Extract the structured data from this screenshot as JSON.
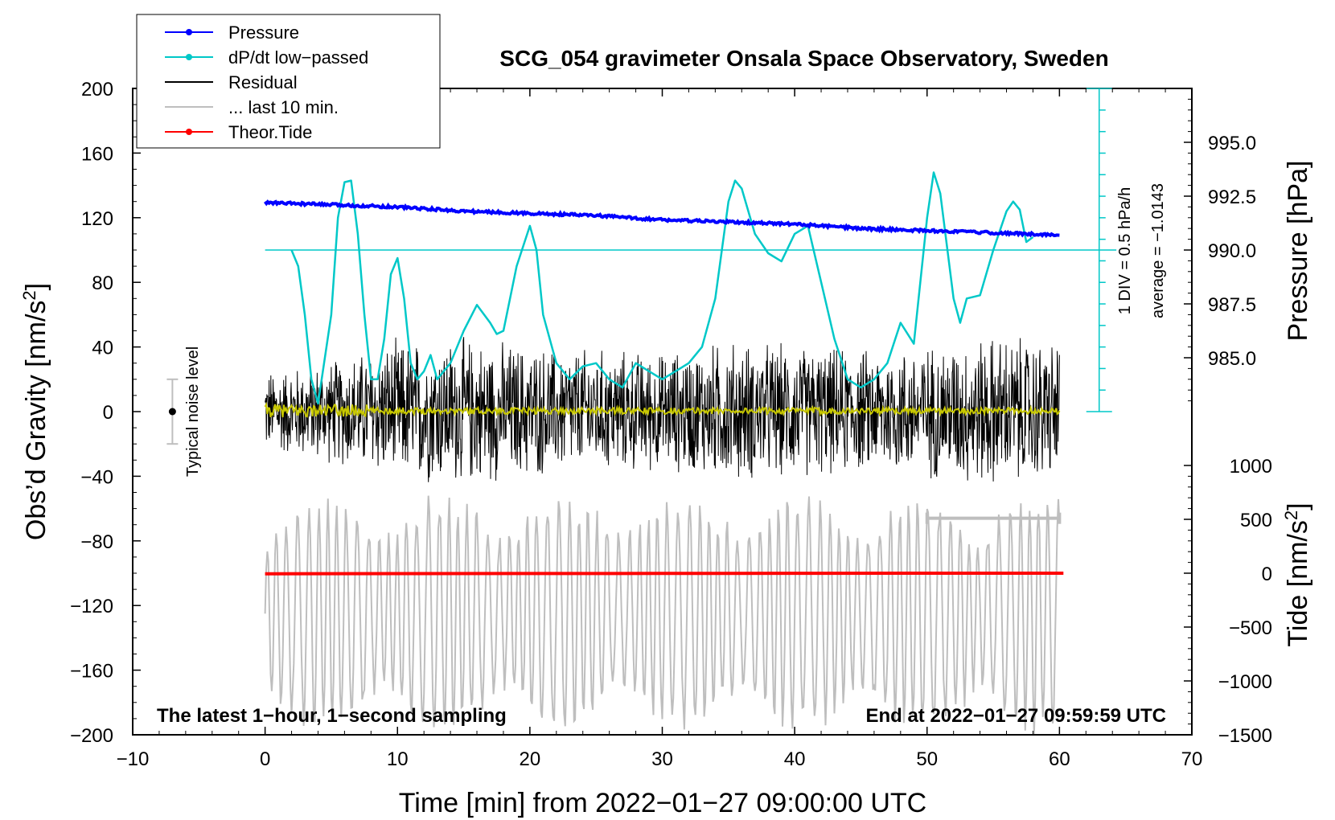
{
  "chart_data": {
    "type": "line",
    "title": "SCG_054 gravimeter Onsala Space Observatory, Sweden",
    "xlabel": "Time [min] from 2022−01−27 09:00:00 UTC",
    "ylabel_left_main": "Obs’d Gravity [nm/s",
    "ylabel_left_sup": "2",
    "ylabel_left_end": "]",
    "ylabel_right_top": "Pressure [hPa]",
    "ylabel_right_bottom_main": "Tide [nm/s",
    "ylabel_right_bottom_sup": "2",
    "ylabel_right_bottom_end": "]",
    "xlim": [
      -10,
      70
    ],
    "ylim": [
      -200,
      200
    ],
    "pressure_lim": [
      982.5,
      997.5
    ],
    "tide_lim": [
      -1500,
      1500
    ],
    "x_ticks": [
      -10,
      0,
      10,
      20,
      30,
      40,
      50,
      60,
      70
    ],
    "x_tick_labels": [
      "−10",
      "0",
      "10",
      "20",
      "30",
      "40",
      "50",
      "60",
      "70"
    ],
    "y_ticks": [
      200,
      160,
      120,
      80,
      40,
      0,
      -40,
      -80,
      -120,
      -160,
      -200
    ],
    "y_tick_labels": [
      "200",
      "160",
      "120",
      "80",
      "40",
      "0",
      "−40",
      "−80",
      "−120",
      "−160",
      "−200"
    ],
    "pressure_ticks": [
      995.0,
      992.5,
      990.0,
      987.5,
      985.0
    ],
    "pressure_tick_labels": [
      "995.0",
      "992.5",
      "990.0",
      "987.5",
      "985.0"
    ],
    "tide_ticks": [
      1000,
      500,
      0,
      -500,
      -1000,
      -1500
    ],
    "tide_tick_labels": [
      "1000",
      "500",
      "0",
      "−500",
      "−1000",
      "−1500"
    ],
    "legend": [
      {
        "label": "Pressure",
        "color": "#0000ff",
        "marker": true
      },
      {
        "label": "dP/dt low−passed",
        "color": "#00c8c8",
        "marker": true
      },
      {
        "label": "Residual",
        "color": "#000000",
        "marker": false
      },
      {
        "label": "... last 10 min.",
        "color": "#bebebe",
        "marker": false
      },
      {
        "label": "Theor.Tide",
        "color": "#ff0000",
        "marker": true
      }
    ],
    "annotations": {
      "bottom_left": "The latest 1−hour, 1−second sampling",
      "bottom_right": "End at 2022−01−27 09:59:59 UTC",
      "noise": "Typical noise level",
      "div_label": "1 DIV = 0.5 hPa/h",
      "average_label": "average = −1.0143"
    },
    "noise_level": {
      "x": -7,
      "center": 0,
      "half_range": 20
    },
    "scale_bar_x": [
      50,
      60
    ],
    "scale_bar_y": -66,
    "dpdt_scale": {
      "x": 63,
      "y_bottom": 0,
      "y_top": 200,
      "tick_step": 13.33
    },
    "dpdt_baseline_y": 100,
    "series": [
      {
        "name": "Pressure",
        "axis": "pressure",
        "color": "#0000ff",
        "x": [
          0,
          5,
          10,
          15,
          20,
          25,
          30,
          35,
          40,
          45,
          50,
          55,
          60
        ],
        "values": [
          992.2,
          992.1,
          992.0,
          991.8,
          991.7,
          991.6,
          991.4,
          991.3,
          991.2,
          991.0,
          990.9,
          990.8,
          990.7
        ]
      },
      {
        "name": "dP/dt low-passed",
        "axis": "gravity",
        "color": "#00c8c8",
        "x": [
          2.0,
          2.5,
          3.0,
          3.5,
          4.0,
          5.0,
          5.5,
          6.0,
          6.5,
          7.0,
          7.5,
          8.0,
          8.5,
          9.0,
          9.5,
          10.0,
          10.5,
          11.0,
          11.5,
          12.0,
          12.5,
          13.0,
          14.0,
          15.0,
          16.0,
          17.0,
          17.5,
          18.0,
          19.0,
          20.0,
          20.5,
          21.0,
          22.0,
          23.0,
          24.0,
          25.0,
          26.0,
          27.0,
          28.0,
          29.0,
          30.0,
          31.0,
          32.0,
          33.0,
          34.0,
          35.0,
          35.5,
          36.0,
          37.0,
          38.0,
          39.0,
          40.0,
          41.0,
          42.0,
          43.0,
          44.0,
          45.0,
          46.0,
          47.0,
          48.0,
          49.0,
          50.0,
          50.5,
          51.0,
          52.0,
          52.5,
          53.0,
          54.0,
          55.0,
          56.0,
          56.5,
          57.0,
          57.5,
          58.0
        ],
        "values": [
          100,
          90,
          60,
          20,
          5,
          60,
          120,
          142,
          143,
          110,
          60,
          20,
          20,
          45,
          85,
          95,
          70,
          30,
          20,
          25,
          35,
          20,
          30,
          50,
          66,
          55,
          48,
          50,
          90,
          115,
          100,
          60,
          30,
          20,
          28,
          30,
          20,
          15,
          30,
          25,
          20,
          25,
          30,
          40,
          70,
          130,
          143,
          138,
          110,
          98,
          93,
          110,
          115,
          80,
          45,
          20,
          15,
          20,
          30,
          55,
          42,
          120,
          148,
          135,
          70,
          55,
          70,
          72,
          100,
          124,
          130,
          125,
          105,
          108
        ]
      },
      {
        "name": "Theor.Tide",
        "axis": "tide",
        "color": "#ff0000",
        "x": [
          0,
          10,
          20,
          30,
          40,
          50,
          60.3
        ],
        "values": [
          -5,
          -4,
          -3,
          -2,
          -1,
          0,
          0
        ]
      }
    ],
    "residual_envelope": {
      "x": [
        0,
        5,
        10,
        15,
        20,
        25,
        30,
        35,
        40,
        45,
        50,
        55,
        60
      ],
      "half_amplitude": [
        28,
        35,
        48,
        50,
        45,
        42,
        40,
        48,
        45,
        42,
        45,
        52,
        48
      ]
    }
  }
}
